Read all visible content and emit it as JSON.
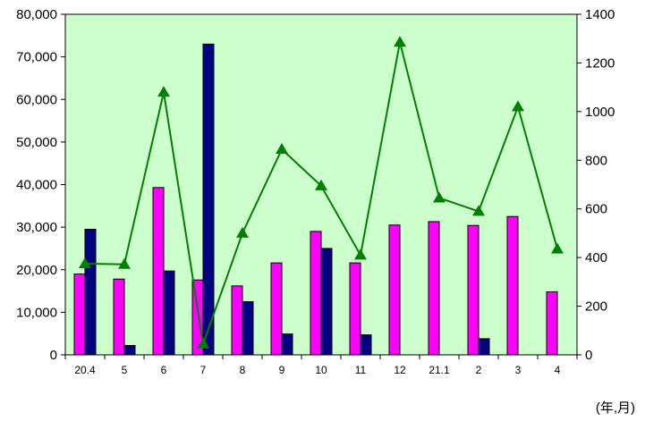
{
  "chart_data": {
    "type": "bar",
    "categories": [
      "20.4",
      "5",
      "6",
      "7",
      "8",
      "9",
      "10",
      "11",
      "12",
      "21.1",
      "2",
      "3",
      "4"
    ],
    "series": [
      {
        "type": "bar",
        "axis": "left",
        "color": "#ff00ff",
        "values": [
          19000,
          17800,
          39300,
          17600,
          16200,
          21600,
          29000,
          21600,
          30500,
          31300,
          30400,
          32500,
          14800
        ]
      },
      {
        "type": "bar",
        "axis": "left",
        "color": "#000080",
        "values": [
          29500,
          2200,
          19700,
          73000,
          12500,
          4900,
          25000,
          4700,
          0,
          0,
          3800,
          0,
          0
        ]
      },
      {
        "type": "line",
        "axis": "right",
        "color": "#008000",
        "marker": "triangle",
        "values": [
          375,
          372,
          1080,
          45,
          500,
          845,
          695,
          410,
          1285,
          645,
          590,
          1020,
          435
        ]
      }
    ],
    "y_left": {
      "min": 0,
      "max": 80000,
      "ticks": [
        "0",
        "10,000",
        "20,000",
        "30,000",
        "40,000",
        "50,000",
        "60,000",
        "70,000",
        "80,000"
      ]
    },
    "y_right": {
      "min": 0,
      "max": 1400,
      "ticks": [
        "0",
        "200",
        "400",
        "600",
        "800",
        "1000",
        "1200",
        "1400"
      ]
    },
    "unit_label": "(年,月)",
    "plot_background": "#ccffcc",
    "grid": false,
    "legend": "none"
  }
}
